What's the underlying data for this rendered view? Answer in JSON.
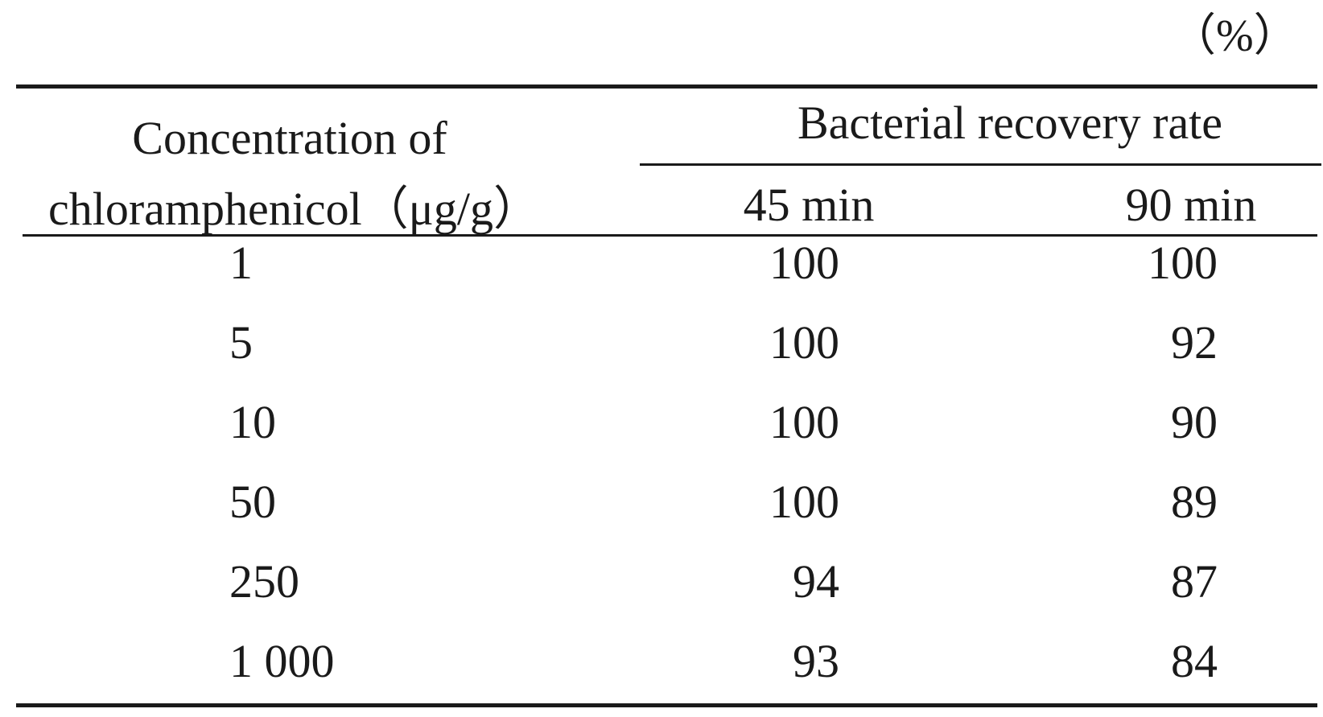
{
  "unit_note": "（%）",
  "header": {
    "concentration_line1": "Concentration of",
    "concentration_line2": "chloramphenicol（μg/g）",
    "span_label": "Bacterial recovery rate",
    "col_45": "45 min",
    "col_90": "90 min"
  },
  "rows": [
    {
      "concentration": "1",
      "min45": "100",
      "min90": "100"
    },
    {
      "concentration": "5",
      "min45": "100",
      "min90": "92"
    },
    {
      "concentration": "10",
      "min45": "100",
      "min90": "90"
    },
    {
      "concentration": "50",
      "min45": "100",
      "min90": "89"
    },
    {
      "concentration": "250",
      "min45": "94",
      "min90": "87"
    },
    {
      "concentration": "1 000",
      "min45": "93",
      "min90": "84"
    }
  ]
}
